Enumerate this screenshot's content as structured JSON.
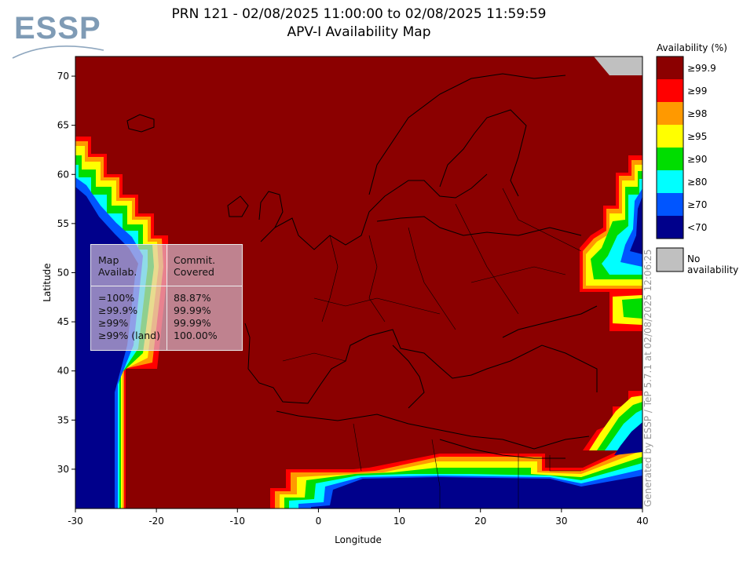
{
  "header": {
    "logo_text": "ESSP",
    "title_line1": "PRN 121 - 02/08/2025 11:00:00 to 02/08/2025 11:59:59",
    "title_line2": "APV-I Availability Map"
  },
  "map": {
    "x_axis_label": "Longitude",
    "y_axis_label": "Latitude",
    "x_ticks": [
      "-30",
      "-20",
      "-10",
      "0",
      "10",
      "20",
      "30",
      "40"
    ],
    "y_ticks": [
      "70",
      "65",
      "60",
      "55",
      "50",
      "45",
      "40",
      "35",
      "30"
    ],
    "lon_range": [
      -30,
      40
    ],
    "lat_range": [
      26,
      72
    ],
    "colors": {
      "ge99_9": "#8b0000",
      "ge99": "#ff0000",
      "ge98": "#ff9900",
      "ge95": "#ffff00",
      "ge90": "#00dd00",
      "ge80": "#00ffff",
      "ge70": "#0055ff",
      "lt70": "#00008b",
      "no_availability": "#c0c0c0"
    }
  },
  "legend": {
    "title": "Availability (%)",
    "items": [
      {
        "label": "≥99.9",
        "color": "#8b0000"
      },
      {
        "label": "≥99",
        "color": "#ff0000"
      },
      {
        "label": "≥98",
        "color": "#ff9900"
      },
      {
        "label": "≥95",
        "color": "#ffff00"
      },
      {
        "label": "≥90",
        "color": "#00dd00"
      },
      {
        "label": "≥80",
        "color": "#00ffff"
      },
      {
        "label": "≥70",
        "color": "#0055ff"
      },
      {
        "label": "<70",
        "color": "#00008b"
      }
    ],
    "no_availability_label": "No availability",
    "no_availability_color": "#c0c0c0"
  },
  "stats": {
    "col1_header_line1": "Map",
    "col1_header_line2": "Availab.",
    "col2_header_line1": "Commit.",
    "col2_header_line2": "Covered",
    "rows": [
      {
        "label": "=100%",
        "value": "88.87%"
      },
      {
        "label": "≥99.9%",
        "value": "99.99%"
      },
      {
        "label": "≥99%",
        "value": "99.99%"
      },
      {
        "label": "≥99% (land)",
        "value": "100.00%"
      }
    ]
  },
  "watermark": "Generated by ESSP / TeP 5.7.1 at 02/08/2025 12:06:25"
}
